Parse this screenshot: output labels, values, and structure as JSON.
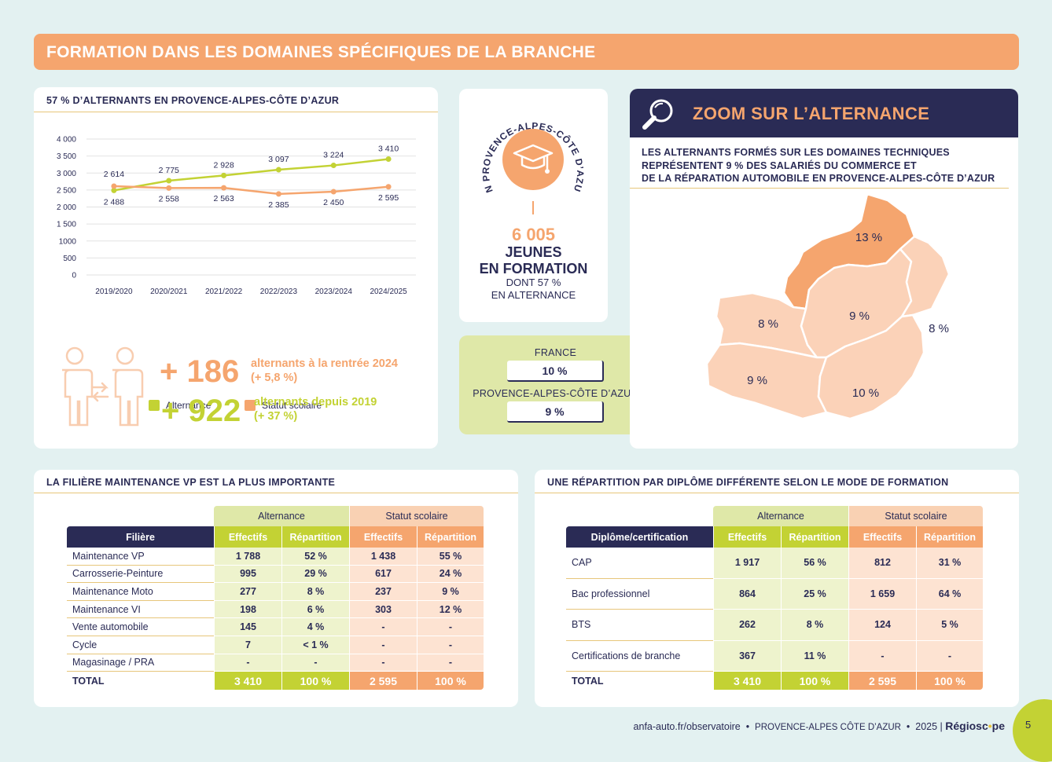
{
  "banner": "FORMATION DANS LES DOMAINES SPÉCIFIQUES DE LA BRANCHE",
  "chart_card": {
    "title": "57 % D’ALTERNANTS EN PROVENCE-ALPES-CÔTE D’AZUR",
    "legend": [
      "Alternance",
      "Statut scolaire"
    ]
  },
  "chart_data": {
    "type": "line",
    "title": "57 % D’ALTERNANTS EN PROVENCE-ALPES-CÔTE D’AZUR",
    "categories": [
      "2019/2020",
      "2020/2021",
      "2021/2022",
      "2022/2023",
      "2023/2024",
      "2024/2025"
    ],
    "series": [
      {
        "name": "Alternance",
        "color": "#c3d234",
        "values": [
          2488,
          2775,
          2928,
          3097,
          3224,
          3410
        ],
        "labels": [
          "2 488",
          "2 775",
          "2 928",
          "3 097",
          "3 224",
          "3 410"
        ]
      },
      {
        "name": "Statut scolaire",
        "color": "#f5a56e",
        "values": [
          2614,
          2558,
          2563,
          2385,
          2450,
          2595
        ],
        "labels": [
          "2 614",
          "2 558",
          "2 563",
          "2 385",
          "2 450",
          "2 595"
        ]
      }
    ],
    "yticks": [
      "0",
      "500",
      "1000",
      "1 500",
      "2 000",
      "2 500",
      "3 000",
      "3 500",
      "4 000"
    ],
    "ylim": [
      0,
      4000
    ],
    "grid": true,
    "legend": "bottom"
  },
  "stats": {
    "s1_num": "+ 186",
    "s1_line1": "alternants à la rentrée 2024",
    "s1_line2": "(+ 5,8 %)",
    "s2_num": "+ 922",
    "s2_line1": "alternants depuis 2019",
    "s2_line2": "(+ 37 %)"
  },
  "jeunes": {
    "arc_text": "EN PROVENCE-ALPES-CÔTE D’AZUR",
    "number": "6 005",
    "line1": "JEUNES",
    "line2": "EN FORMATION",
    "line3": "DONT 57 %",
    "line4": "EN ALTERNANCE"
  },
  "compare": {
    "france_label": "FRANCE",
    "france_value": "10 %",
    "region_label": "PROVENCE-ALPES-CÔTE D’AZUR",
    "region_value": "9 %"
  },
  "zoom": {
    "title": "ZOOM SUR L’ALTERNANCE",
    "sub1": "LES ALTERNANTS FORMÉS SUR LES DOMAINES TECHNIQUES",
    "sub2": "REPRÉSENTENT 9 % DES SALARIÉS DU COMMERCE ET",
    "sub3": "DE LA RÉPARATION AUTOMOBILE EN PROVENCE-ALPES-CÔTE D’AZUR",
    "map_values": [
      "13 %",
      "8 %",
      "9 %",
      "8 %",
      "9 %",
      "10 %"
    ]
  },
  "table1": {
    "title": "LA FILIÈRE MAINTENANCE VP EST LA PLUS IMPORTANTE",
    "group_alt": "Alternance",
    "group_sco": "Statut scolaire",
    "col_name": "Filière",
    "col_eff": "Effectifs",
    "col_rep": "Répartition",
    "rows": [
      [
        "Maintenance VP",
        "1 788",
        "52 %",
        "1 438",
        "55 %"
      ],
      [
        "Carrosserie-Peinture",
        "995",
        "29 %",
        "617",
        "24 %"
      ],
      [
        "Maintenance Moto",
        "277",
        "8 %",
        "237",
        "9 %"
      ],
      [
        "Maintenance VI",
        "198",
        "6 %",
        "303",
        "12 %"
      ],
      [
        "Vente automobile",
        "145",
        "4 %",
        "-",
        "-"
      ],
      [
        "Cycle",
        "7",
        "< 1 %",
        "-",
        "-"
      ],
      [
        "Magasinage / PRA",
        "-",
        "-",
        "-",
        "-"
      ]
    ],
    "total": [
      "TOTAL",
      "3 410",
      "100 %",
      "2 595",
      "100 %"
    ]
  },
  "table2": {
    "title": "UNE RÉPARTITION PAR DIPLÔME DIFFÉRENTE SELON LE MODE DE FORMATION",
    "group_alt": "Alternance",
    "group_sco": "Statut scolaire",
    "col_name": "Diplôme/certification",
    "col_eff": "Effectifs",
    "col_rep": "Répartition",
    "rows": [
      [
        "CAP",
        "1 917",
        "56 %",
        "812",
        "31 %"
      ],
      [
        "Bac professionnel",
        "864",
        "25 %",
        "1 659",
        "64 %"
      ],
      [
        "BTS",
        "262",
        "8 %",
        "124",
        "5 %"
      ],
      [
        "Certifications de branche",
        "367",
        "11 %",
        "-",
        "-"
      ]
    ],
    "total": [
      "TOTAL",
      "3 410",
      "100 %",
      "2 595",
      "100 %"
    ]
  },
  "footer": {
    "url": "anfa-auto.fr/observatoire",
    "region": "PROVENCE-ALPES CÔTE D’AZUR",
    "year": "2025 |",
    "brand_a": "Régiosc",
    "brand_b": "pe",
    "page": "5"
  }
}
